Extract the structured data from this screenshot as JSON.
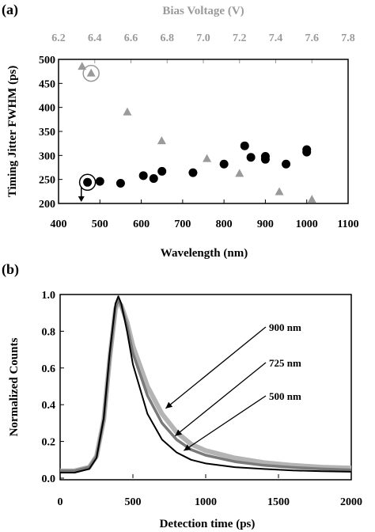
{
  "chart_data": [
    {
      "panel": "(a)",
      "type": "scatter",
      "xlabel": "Wavelength (nm)",
      "ylabel": "Timing Jitter FWHM (ps)",
      "x2label": "Bias Voltage (V)",
      "xlim": [
        400,
        1100
      ],
      "ylim": [
        200,
        500
      ],
      "x2lim": [
        6.2,
        7.8
      ],
      "xticks": [
        400,
        500,
        600,
        700,
        800,
        900,
        1000,
        1100
      ],
      "yticks": [
        200,
        250,
        300,
        350,
        400,
        450,
        500
      ],
      "x2ticks": [
        "6.2",
        "6.4",
        "6.6",
        "6.8",
        "7.0",
        "7.2",
        "7.4",
        "7.6",
        "7.8"
      ],
      "grid": false,
      "series": [
        {
          "axis": "Wavelength (nm)",
          "marker": "circle",
          "color": "#000000",
          "points": [
            [
              470,
              244
            ],
            [
              500,
              246
            ],
            [
              550,
              242
            ],
            [
              605,
              258
            ],
            [
              630,
              252
            ],
            [
              650,
              267
            ],
            [
              725,
              264
            ],
            [
              800,
              282
            ],
            [
              850,
              320
            ],
            [
              865,
              296
            ],
            [
              900,
              298
            ],
            [
              900,
              292
            ],
            [
              950,
              282
            ],
            [
              1000,
              312
            ],
            [
              1000,
              307
            ]
          ]
        },
        {
          "axis": "Bias Voltage (V)",
          "marker": "triangle",
          "color": "#9a9a9a",
          "points": [
            [
              6.33,
              485
            ],
            [
              6.38,
              471
            ],
            [
              6.58,
              390
            ],
            [
              6.77,
              330
            ],
            [
              7.02,
              293
            ],
            [
              7.2,
              262
            ],
            [
              7.42,
              224
            ],
            [
              7.6,
              208
            ]
          ]
        }
      ],
      "annotations": [
        {
          "type": "circle",
          "target": [
            470,
            244
          ],
          "axis": "Wavelength (nm)"
        },
        {
          "type": "circle",
          "target": [
            6.38,
            471
          ],
          "axis": "Bias Voltage (V)"
        },
        {
          "type": "arrow-down",
          "from": [
            455,
            235
          ],
          "to": [
            455,
            205
          ]
        }
      ]
    },
    {
      "panel": "(b)",
      "type": "line",
      "xlabel": "Detection time (ps)",
      "ylabel": "Normalized Counts",
      "xlim": [
        0,
        2000
      ],
      "ylim": [
        0,
        1.0
      ],
      "xticks": [
        0,
        500,
        1000,
        1500,
        2000
      ],
      "yticks": [
        "0.0",
        "0.2",
        "0.4",
        "0.6",
        "0.8",
        "1.0"
      ],
      "grid": false,
      "series": [
        {
          "name": "900 nm",
          "color": "#b4b4b4",
          "x": [
            0,
            100,
            200,
            250,
            300,
            340,
            380,
            400,
            420,
            460,
            500,
            600,
            700,
            800,
            900,
            1000,
            1200,
            1400,
            1600,
            1800,
            2000
          ],
          "y": [
            0.04,
            0.04,
            0.06,
            0.12,
            0.32,
            0.65,
            0.92,
            0.96,
            0.94,
            0.85,
            0.72,
            0.5,
            0.35,
            0.25,
            0.185,
            0.15,
            0.11,
            0.085,
            0.07,
            0.06,
            0.055
          ]
        },
        {
          "name": "725 nm",
          "color": "#7a7a7a",
          "x": [
            0,
            100,
            200,
            250,
            300,
            340,
            380,
            400,
            420,
            460,
            500,
            600,
            700,
            800,
            900,
            1000,
            1200,
            1400,
            1600,
            1800,
            2000
          ],
          "y": [
            0.04,
            0.04,
            0.06,
            0.12,
            0.32,
            0.65,
            0.93,
            0.97,
            0.94,
            0.83,
            0.68,
            0.45,
            0.3,
            0.21,
            0.155,
            0.125,
            0.09,
            0.07,
            0.058,
            0.05,
            0.045
          ]
        },
        {
          "name": "500 nm",
          "color": "#000000",
          "x": [
            0,
            100,
            200,
            250,
            300,
            340,
            380,
            400,
            420,
            460,
            500,
            600,
            700,
            800,
            900,
            1000,
            1200,
            1400,
            1600,
            1800,
            2000
          ],
          "y": [
            0.03,
            0.03,
            0.05,
            0.11,
            0.33,
            0.68,
            0.95,
            0.99,
            0.95,
            0.8,
            0.62,
            0.35,
            0.21,
            0.14,
            0.1,
            0.08,
            0.06,
            0.05,
            0.042,
            0.038,
            0.035
          ]
        }
      ],
      "annotations": [
        {
          "label": "900 nm",
          "arrow_to": [
            725,
            0.38
          ]
        },
        {
          "label": "725 nm",
          "arrow_to": [
            790,
            0.23
          ]
        },
        {
          "label": "500 nm",
          "arrow_to": [
            850,
            0.15
          ]
        }
      ]
    }
  ]
}
